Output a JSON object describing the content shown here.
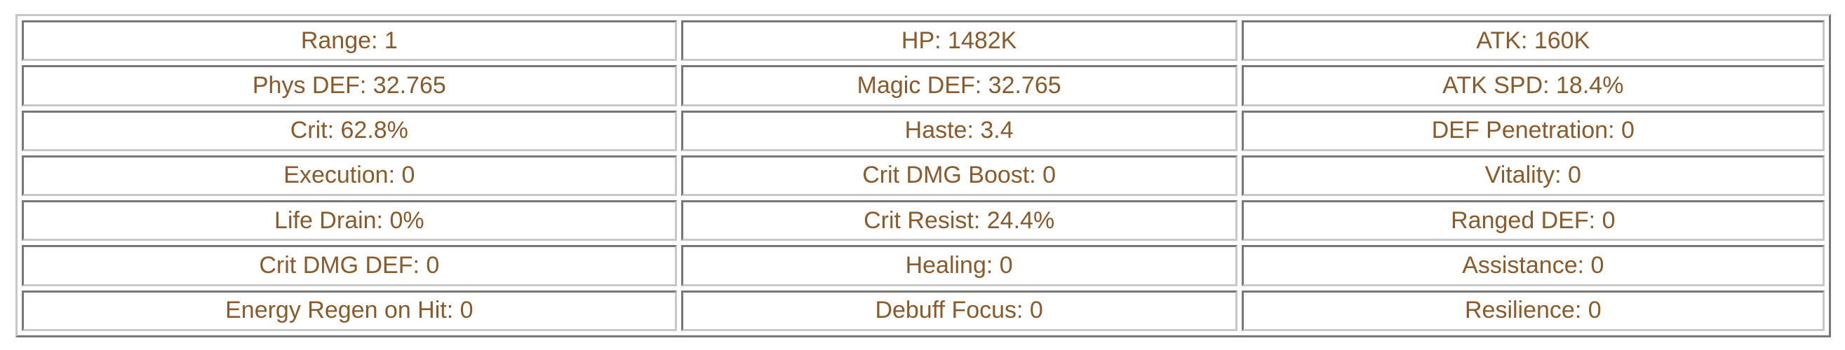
{
  "colors": {
    "text": "#8b5a2b",
    "border": "#777777"
  },
  "rows": [
    [
      "Range: 1",
      "HP: 1482K",
      "ATK: 160K"
    ],
    [
      "Phys DEF: 32.765",
      "Magic DEF: 32.765",
      "ATK SPD: 18.4%"
    ],
    [
      "Crit: 62.8%",
      "Haste: 3.4",
      "DEF Penetration: 0"
    ],
    [
      "Execution: 0",
      "Crit DMG Boost: 0",
      "Vitality: 0"
    ],
    [
      "Life Drain: 0%",
      "Crit Resist: 24.4%",
      "Ranged DEF: 0"
    ],
    [
      "Crit DMG DEF: 0",
      "Healing: 0",
      "Assistance: 0"
    ],
    [
      "Energy Regen on Hit: 0",
      "Debuff Focus: 0",
      "Resilience: 0"
    ]
  ]
}
